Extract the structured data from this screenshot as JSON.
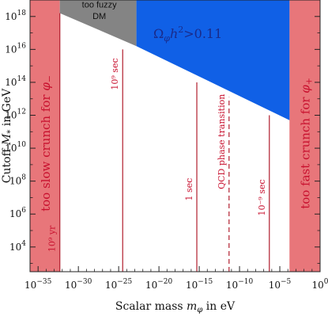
{
  "colors": {
    "bounds_region": "#e8767a",
    "fuzzy_region": "#848484",
    "omega_region": "#1060e6",
    "time_line": "#b11e2e",
    "frame": "#222222"
  },
  "chart_data": {
    "type": "area",
    "scale": "log-log",
    "xlabel": "Scalar mass m_φ in eV",
    "ylabel": "Cutoff M_* in GeV",
    "x_log10_range": [
      -36,
      0
    ],
    "y_log10_range": [
      2.5,
      19
    ],
    "x_ticks": [
      {
        "log10": -35,
        "label": "−35"
      },
      {
        "log10": -30,
        "label": "−30"
      },
      {
        "log10": -25,
        "label": "−25"
      },
      {
        "log10": -20,
        "label": "−20"
      },
      {
        "log10": -15,
        "label": "−15"
      },
      {
        "log10": -10,
        "label": "−10"
      },
      {
        "log10": -5,
        "label": "−5"
      },
      {
        "log10": 0,
        "label": "0"
      }
    ],
    "y_ticks": [
      {
        "log10": 4,
        "label": "4"
      },
      {
        "log10": 6,
        "label": "6"
      },
      {
        "log10": 8,
        "label": "8"
      },
      {
        "log10": 10,
        "label": "10"
      },
      {
        "log10": 12,
        "label": "12"
      },
      {
        "log10": 14,
        "label": "14"
      },
      {
        "log10": 16,
        "label": "16"
      },
      {
        "log10": 18,
        "label": "18"
      }
    ],
    "regions": [
      {
        "name": "too slow crunch",
        "label": "too slow crunch for φ−",
        "x_log10": [
          -36,
          -32.3
        ]
      },
      {
        "name": "too fast crunch",
        "label": "too fast crunch for φ+",
        "x_log10": [
          -3.8,
          0
        ]
      },
      {
        "name": "too fuzzy DM",
        "label_line1": "too fuzzy",
        "label_line2": "DM",
        "polygon_log10": [
          [
            -32.3,
            19
          ],
          [
            -22.8,
            19
          ],
          [
            -22.8,
            16.2
          ],
          [
            -32.3,
            18.2
          ]
        ]
      },
      {
        "name": "omega region",
        "label": "Ωφh²>0.11",
        "polygon_log10": [
          [
            -22.8,
            19
          ],
          [
            -3.8,
            19
          ],
          [
            -3.8,
            11.7
          ],
          [
            -22.8,
            16.2
          ]
        ]
      }
    ],
    "time_lines": [
      {
        "name": "10^9 yr",
        "label": "10⁹ yr",
        "x_log10": -32.3,
        "y_top_log10": 18.2,
        "dashed": false
      },
      {
        "name": "10^9 sec",
        "label": "10⁹ sec",
        "x_log10": -24.5,
        "y_top_log10": 16.0,
        "dashed": false
      },
      {
        "name": "1 sec",
        "label": "1 sec",
        "x_log10": -15.3,
        "y_top_log10": 14.0,
        "dashed": false
      },
      {
        "name": "QCD phase transition",
        "label": "QCD phase transition",
        "x_log10": -11.3,
        "y_top_log10": 13.1,
        "dashed": true
      },
      {
        "name": "10^-9 sec",
        "label": "10⁻⁹ sec",
        "x_log10": -6.3,
        "y_top_log10": 12.0,
        "dashed": false
      }
    ]
  },
  "texts": {
    "xlabel_prefix": "Scalar mass ",
    "xlabel_var": "m",
    "xlabel_sub": "φ",
    "xlabel_suffix": " in eV",
    "ylabel_prefix": "Cutoff ",
    "ylabel_var": "M",
    "ylabel_sub": "*",
    "ylabel_suffix": " in GeV",
    "tick_base": "10",
    "slow_prefix": "too slow crunch for ",
    "slow_var": "φ",
    "slow_sub": "−",
    "fast_prefix": "too fast crunch for ",
    "fast_var": "φ",
    "fast_sub": "+",
    "omega_main": "Ω",
    "omega_sub": "φ",
    "omega_h": "h",
    "omega_exp": "2",
    "omega_tail": ">0.11"
  }
}
